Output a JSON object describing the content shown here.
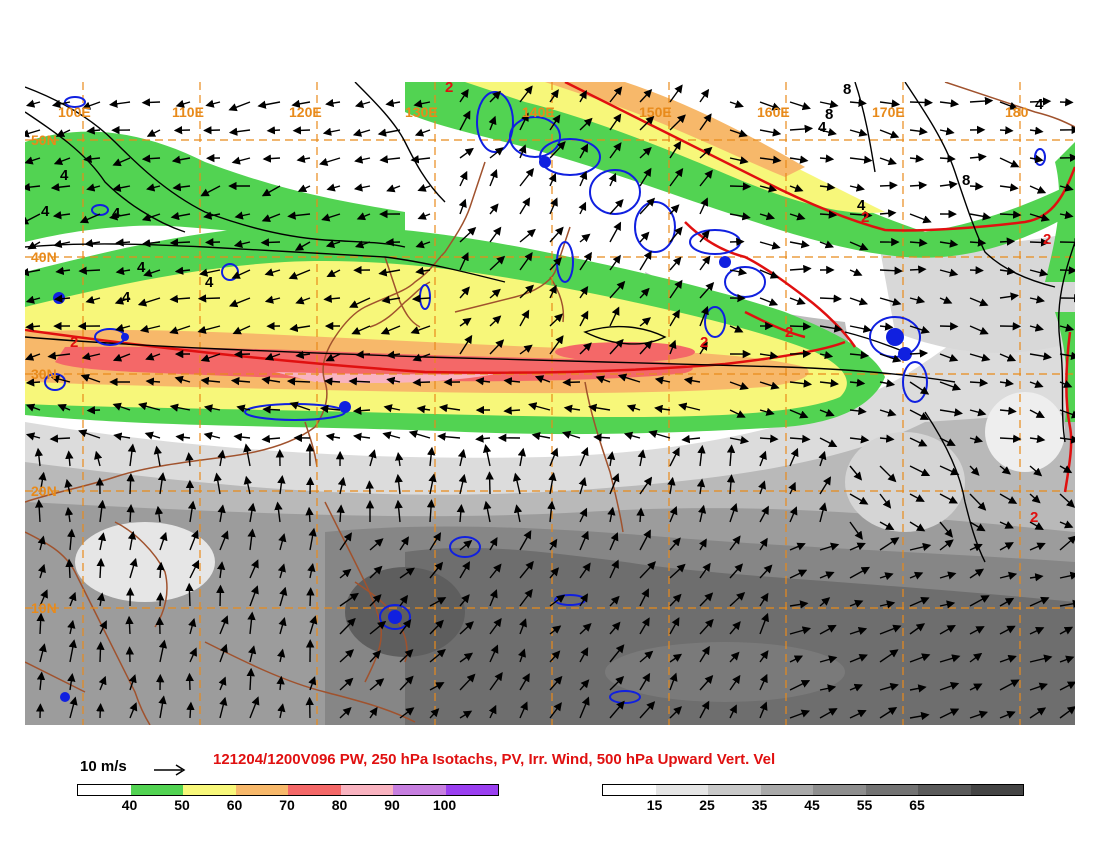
{
  "title": "121204/1200V096 PW, 250 hPa Isotachs, PV, Irr. Wind, 500 hPa Upward Vert. Vel",
  "reference_vector": {
    "label": "10 m/s"
  },
  "longitude_labels": [
    "100E",
    "110E",
    "120E",
    "130E",
    "140E",
    "150E",
    "160E",
    "170E",
    "180"
  ],
  "latitude_labels": [
    "50N",
    "40N",
    "30N",
    "20N",
    "10N"
  ],
  "contour_labels": {
    "pv_black": [
      "8",
      "8",
      "4",
      "8",
      "4",
      "4",
      "4",
      "4",
      "4",
      "4",
      "4",
      "4"
    ],
    "isotach_red": [
      "2",
      "2",
      "2",
      "2",
      "2",
      "2",
      "2"
    ]
  },
  "colors": {
    "graticule": "#e88a1a",
    "coastline": "#a0522d",
    "pv_contour": "#000000",
    "isotach_contour": "#e01010",
    "vertical_velocity_contour": "#1020e0",
    "title": "#e01010"
  },
  "colorbar_isotachs": {
    "labels": [
      "40",
      "50",
      "60",
      "70",
      "80",
      "90",
      "100"
    ],
    "colors": [
      "#ffffff",
      "#52d352",
      "#f7f77a",
      "#f7b86a",
      "#f46868",
      "#f9b3c0",
      "#c77fe0",
      "#9a3ff0"
    ]
  },
  "colorbar_pw": {
    "labels": [
      "15",
      "25",
      "35",
      "45",
      "55",
      "65"
    ],
    "colors": [
      "#ffffff",
      "#e5e5e5",
      "#c8c8c8",
      "#a9a9a9",
      "#8e8e8e",
      "#737373",
      "#5a5a5a",
      "#444444"
    ]
  }
}
